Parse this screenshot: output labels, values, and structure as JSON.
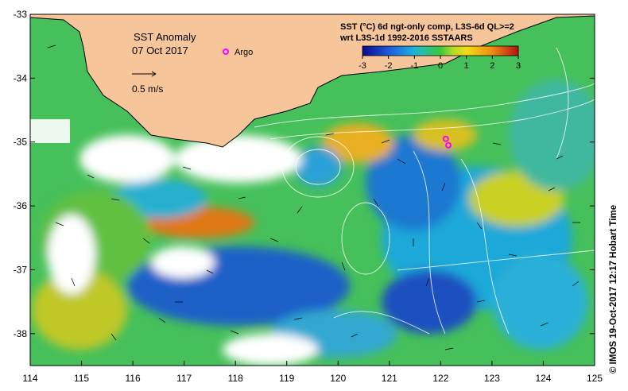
{
  "map": {
    "title": "SST Anomaly",
    "date": "07 Oct 2017",
    "argo_label": "Argo",
    "scale_label": "0.5 m/s",
    "product_line1": "SST (°C) 6d ngt-only comp, L3S-6d QL>=2",
    "product_line2": "wrt L3S-1d 1992-2016 SSTAARS",
    "credit": "© IMOS 19-Oct-2017 12:17 Hobart Time",
    "lon_range": [
      114,
      125
    ],
    "lat_range": [
      -38.5,
      -33
    ],
    "lon_ticks": [
      "114",
      "115",
      "116",
      "117",
      "118",
      "119",
      "120",
      "121",
      "122",
      "123",
      "124",
      "125"
    ],
    "lat_ticks": [
      "-33",
      "-34",
      "-35",
      "-36",
      "-37",
      "-38"
    ],
    "colorbar_ticks": [
      "-3",
      "-2",
      "-1",
      "0",
      "1",
      "2",
      "3"
    ],
    "colors": {
      "land": "#f7c59a",
      "argo": "#ff00ff",
      "missing": "#ffffff"
    },
    "argo_floats": [
      {
        "lon": 122.1,
        "lat": -34.95
      },
      {
        "lon": 122.15,
        "lat": -35.05
      }
    ]
  }
}
